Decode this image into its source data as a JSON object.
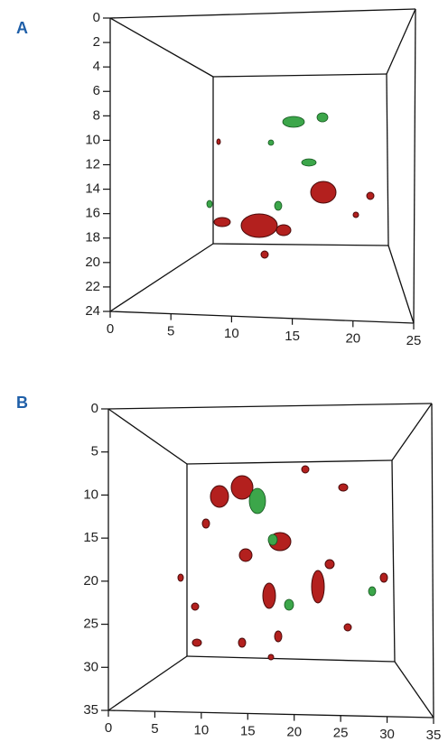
{
  "chart_data": [
    {
      "type": "scatter3d",
      "panel": "A",
      "xlim": [
        0,
        25
      ],
      "xticks": [
        0,
        5,
        10,
        15,
        20,
        25
      ],
      "ylim": [
        0,
        24
      ],
      "yticks": [
        0,
        2,
        4,
        6,
        8,
        10,
        12,
        14,
        16,
        18,
        20,
        22,
        24
      ]
    },
    {
      "type": "scatter3d",
      "panel": "B",
      "xlim": [
        0,
        35
      ],
      "xticks": [
        0,
        5,
        10,
        15,
        20,
        25,
        30,
        35
      ],
      "ylim": [
        0,
        35
      ],
      "yticks": [
        0,
        5,
        10,
        15,
        20,
        25,
        30,
        35
      ]
    }
  ]
}
